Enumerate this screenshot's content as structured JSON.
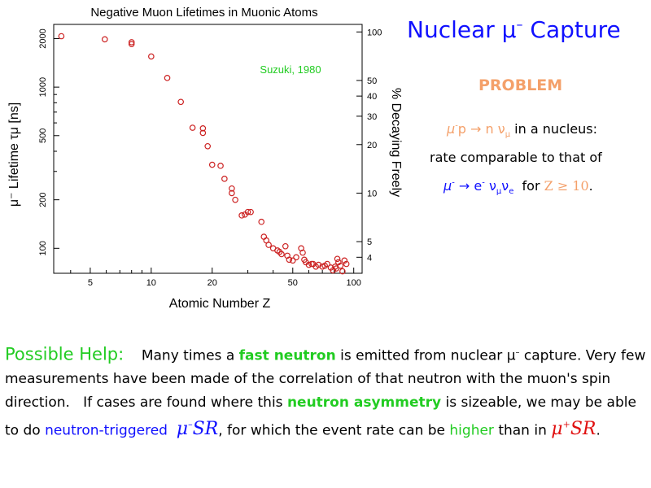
{
  "slide": {
    "title_main": "Nuclear μ",
    "title_sup": "–",
    "title_rest": "Capture",
    "problem_label": "PROBLEM",
    "problem_lines": {
      "l1_mu": "μ",
      "l1_minus": "-",
      "l1_p_arrow_n": "p → n ν",
      "l1_sub_mu": "μ",
      "l1_rest": "in a nucleus:",
      "l2": "rate comparable to that of",
      "l3_mu": "μ",
      "l3_minus": "-",
      "l3_arrow_e": "→ e",
      "l3_e_minus": "-",
      "l3_nu1": "ν",
      "l3_sub_mu": "μ",
      "l3_nu2": "ν",
      "l3_sub_e": "e",
      "l3_for": "for",
      "l3_z": "Z ≥ 10",
      "l3_dot": "."
    },
    "paragraph": {
      "help_label": "Possible Help:",
      "s1": "Many times a",
      "fast_neutron": "fast neutron",
      "s2": "is emitted from nuclear μ",
      "s2_sup": "–",
      "s3": "capture. Very few measurements have been made of the correlation of that neutron with the muon's spin direction.   If cases are found where this",
      "neutron_asymmetry": "neutron asymmetry",
      "s4": "is sizeable, we may be able to do",
      "neutron_triggered": "neutron-triggered",
      "msr_minus_mu": "μ",
      "msr_minus_sign": "–",
      "msr_minus_sr": "SR",
      "s5": ", for which the event rate can be",
      "higher": "higher",
      "s6": "than in",
      "msr_plus_mu": "μ",
      "msr_plus_sign": "+",
      "msr_plus_sr": "SR",
      "s7": "."
    }
  },
  "chart_data": {
    "type": "scatter",
    "title": "Negative Muon Lifetimes in Muonic Atoms",
    "xlabel": "Atomic Number  Z",
    "ylabel": "μ⁻ Lifetime  τμ [ns]",
    "y2label": "% Decaying Freely",
    "annotation": "Suzuki, 1980",
    "x_scale": "log",
    "y_scale": "log",
    "xlim": [
      3.3,
      110
    ],
    "ylim": [
      70,
      2450
    ],
    "x_ticks": [
      5,
      10,
      20,
      50,
      100
    ],
    "y_ticks": [
      100,
      200,
      500,
      1000,
      2000
    ],
    "y2_ticks": [
      "100",
      "50",
      "40",
      "30",
      "20",
      "10",
      "5",
      "4"
    ],
    "y2_tick_lifetimes": [
      2200,
      1100,
      880,
      660,
      440,
      220,
      110,
      88
    ],
    "marker_color": "#cc2222",
    "points": [
      [
        3.6,
        2070
      ],
      [
        5.9,
        1980
      ],
      [
        8,
        1900
      ],
      [
        8,
        1850
      ],
      [
        10,
        1550
      ],
      [
        12,
        1140
      ],
      [
        14,
        810
      ],
      [
        16,
        560
      ],
      [
        18,
        555
      ],
      [
        18,
        520
      ],
      [
        19,
        430
      ],
      [
        20,
        330
      ],
      [
        22,
        325
      ],
      [
        23,
        270
      ],
      [
        25,
        235
      ],
      [
        25,
        220
      ],
      [
        26,
        200
      ],
      [
        28,
        160
      ],
      [
        29,
        162
      ],
      [
        30,
        168
      ],
      [
        31,
        168
      ],
      [
        35,
        146
      ],
      [
        36,
        118
      ],
      [
        37,
        112
      ],
      [
        38,
        105
      ],
      [
        40,
        100
      ],
      [
        42,
        97
      ],
      [
        43,
        95
      ],
      [
        44,
        92
      ],
      [
        46,
        103
      ],
      [
        47,
        90
      ],
      [
        48,
        85
      ],
      [
        50,
        84
      ],
      [
        52,
        88
      ],
      [
        55,
        100
      ],
      [
        56,
        94
      ],
      [
        57,
        85
      ],
      [
        58,
        82
      ],
      [
        60,
        79
      ],
      [
        62,
        80
      ],
      [
        63,
        80
      ],
      [
        65,
        77
      ],
      [
        67,
        79
      ],
      [
        70,
        77
      ],
      [
        72,
        78
      ],
      [
        74,
        80
      ],
      [
        77,
        76
      ],
      [
        79,
        73
      ],
      [
        81,
        77
      ],
      [
        82,
        75
      ],
      [
        83,
        86
      ],
      [
        84,
        82
      ],
      [
        86,
        78
      ],
      [
        88,
        72
      ],
      [
        90,
        84
      ],
      [
        92,
        80
      ]
    ]
  }
}
